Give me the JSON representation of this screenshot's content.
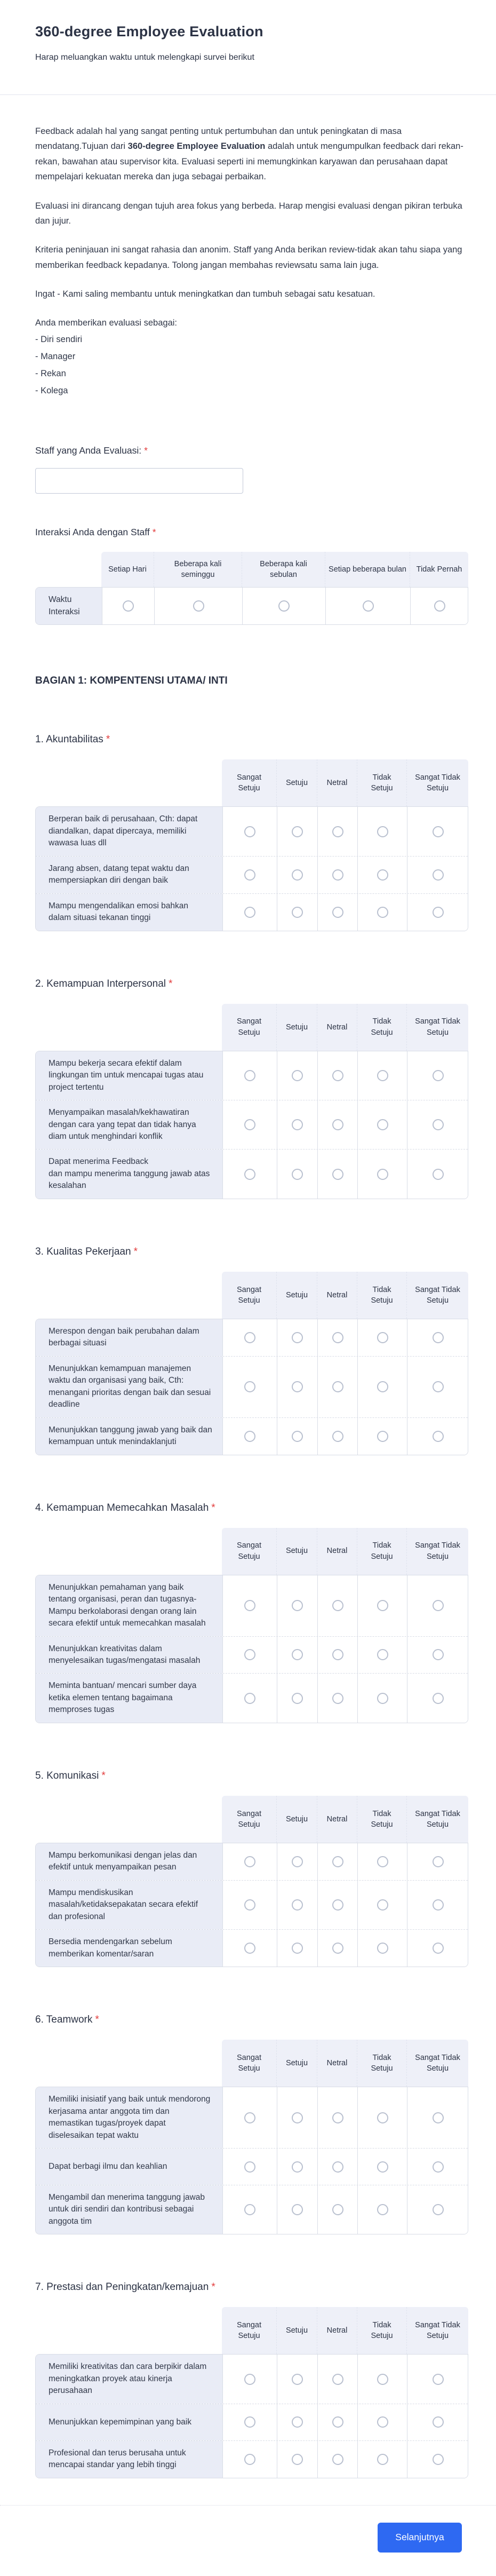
{
  "form": {
    "title": "360-degree Employee Evaluation",
    "subtitle": "Harap meluangkan waktu untuk melengkapi survei berikut",
    "required_mark": "*",
    "intro": {
      "p1_pre": "Feedback adalah hal yang sangat penting untuk pertumbuhan dan untuk peningkatan di masa mendatang.Tujuan dari ",
      "p1_bold": "360-degree Employee Evaluation",
      "p1_post": " adalah untuk mengumpulkan feedback dari rekan-rekan, bawahan atau supervisor kita. Evaluasi seperti ini memungkinkan karyawan dan perusahaan dapat mempelajari kekuatan mereka dan juga sebagai perbaikan.",
      "p2": "Evaluasi ini dirancang dengan tujuh area fokus yang berbeda. Harap mengisi evaluasi dengan pikiran terbuka dan jujur.",
      "p3": "Kriteria peninjauan ini sangat rahasia dan anonim. Staff yang Anda berikan review-tidak akan tahu siapa yang memberikan feedback kepadanya. Tolong jangan membahas reviewsatu sama lain juga.",
      "p4": "Ingat - Kami saling membantu untuk meningkatkan dan tumbuh sebagai satu kesatuan.",
      "p5": "Anda memberikan evaluasi sebagai:",
      "roles": [
        "- Diri sendiri",
        "- Manager",
        "- Rekan",
        "- Kolega"
      ]
    },
    "staff_question": {
      "label": "Staff yang Anda Evaluasi:",
      "value": ""
    },
    "interaction_question": {
      "label": "Interaksi Anda dengan Staff",
      "columns": [
        "Setiap Hari",
        "Beberapa kali seminggu",
        "Beberapa kali sebulan",
        "Setiap beberapa bulan",
        "Tidak Pernah"
      ],
      "rows": [
        "Waktu Interaksi"
      ]
    },
    "section_heading": "BAGIAN 1: KOMPENTENSI UTAMA/ INTI",
    "scale_columns": [
      "Sangat Setuju",
      "Setuju",
      "Netral",
      "Tidak Setuju",
      "Sangat Tidak Setuju"
    ],
    "questions": [
      {
        "title": "1. Akuntabilitas",
        "rows": [
          "Berperan baik di perusahaan, Cth: dapat diandalkan, dapat dipercaya, memiliki wawasa luas dll",
          "Jarang absen, datang tepat waktu dan mempersiapkan diri dengan baik",
          "Mampu mengendalikan emosi bahkan dalam situasi tekanan tinggi"
        ]
      },
      {
        "title": "2. Kemampuan Interpersonal",
        "rows": [
          "Mampu bekerja secara efektif dalam lingkungan tim untuk mencapai tugas atau project tertentu",
          "Menyampaikan masalah/kekhawatiran dengan cara yang tepat dan tidak hanya diam untuk menghindari konflik",
          "Dapat menerima Feedback\ndan mampu menerima tanggung jawab atas kesalahan"
        ]
      },
      {
        "title": "3. Kualitas Pekerjaan",
        "rows": [
          "Merespon dengan baik perubahan dalam berbagai situasi",
          "Menunjukkan kemampuan manajemen waktu dan organisasi yang baik, Cth: menangani prioritas dengan baik dan sesuai deadline",
          "Menunjukkan tanggung jawab yang baik dan kemampuan untuk menindaklanjuti"
        ]
      },
      {
        "title": "4. Kemampuan Memecahkan Masalah",
        "rows": [
          "Menunjukkan pemahaman yang baik tentang organisasi, peran dan tugasnya- Mampu berkolaborasi dengan orang lain secara efektif untuk memecahkan masalah",
          "Menunjukkan kreativitas dalam menyelesaikan tugas/mengatasi masalah",
          "Meminta bantuan/ mencari sumber daya ketika elemen tentang bagaimana memproses tugas"
        ]
      },
      {
        "title": "5. Komunikasi",
        "rows": [
          "Mampu berkomunikasi dengan jelas dan efektif untuk menyampaikan pesan",
          "Mampu mendiskusikan masalah/ketidaksepakatan secara efektif dan profesional",
          "Bersedia mendengarkan sebelum memberikan komentar/saran"
        ]
      },
      {
        "title": "6. Teamwork",
        "rows": [
          "Memiliki inisiatif yang baik untuk mendorong kerjasama antar anggota tim dan memastikan tugas/proyek dapat diselesaikan tepat waktu",
          "Dapat berbagi ilmu dan keahlian",
          "Mengambil dan menerima tanggung jawab untuk diri sendiri dan kontribusi sebagai anggota tim"
        ]
      },
      {
        "title": "7. Prestasi dan Peningkatan/kemajuan",
        "rows": [
          "Memiliki kreativitas dan cara berpikir dalam meningkatkan proyek atau kinerja perusahaan",
          "Menunjukkan kepemimpinan yang baik",
          "Profesional dan terus berusaha untuk mencapai standar yang lebih tinggi"
        ]
      }
    ],
    "next_button": "Selanjutnya"
  },
  "colors": {
    "accent_blue": "#2e69f2",
    "required_red": "#e23b3b",
    "heading_text": "#2c3345",
    "table_header_bg": "#eef0f8",
    "table_label_bg": "#e9ecf6",
    "table_border": "#d8dce6"
  }
}
